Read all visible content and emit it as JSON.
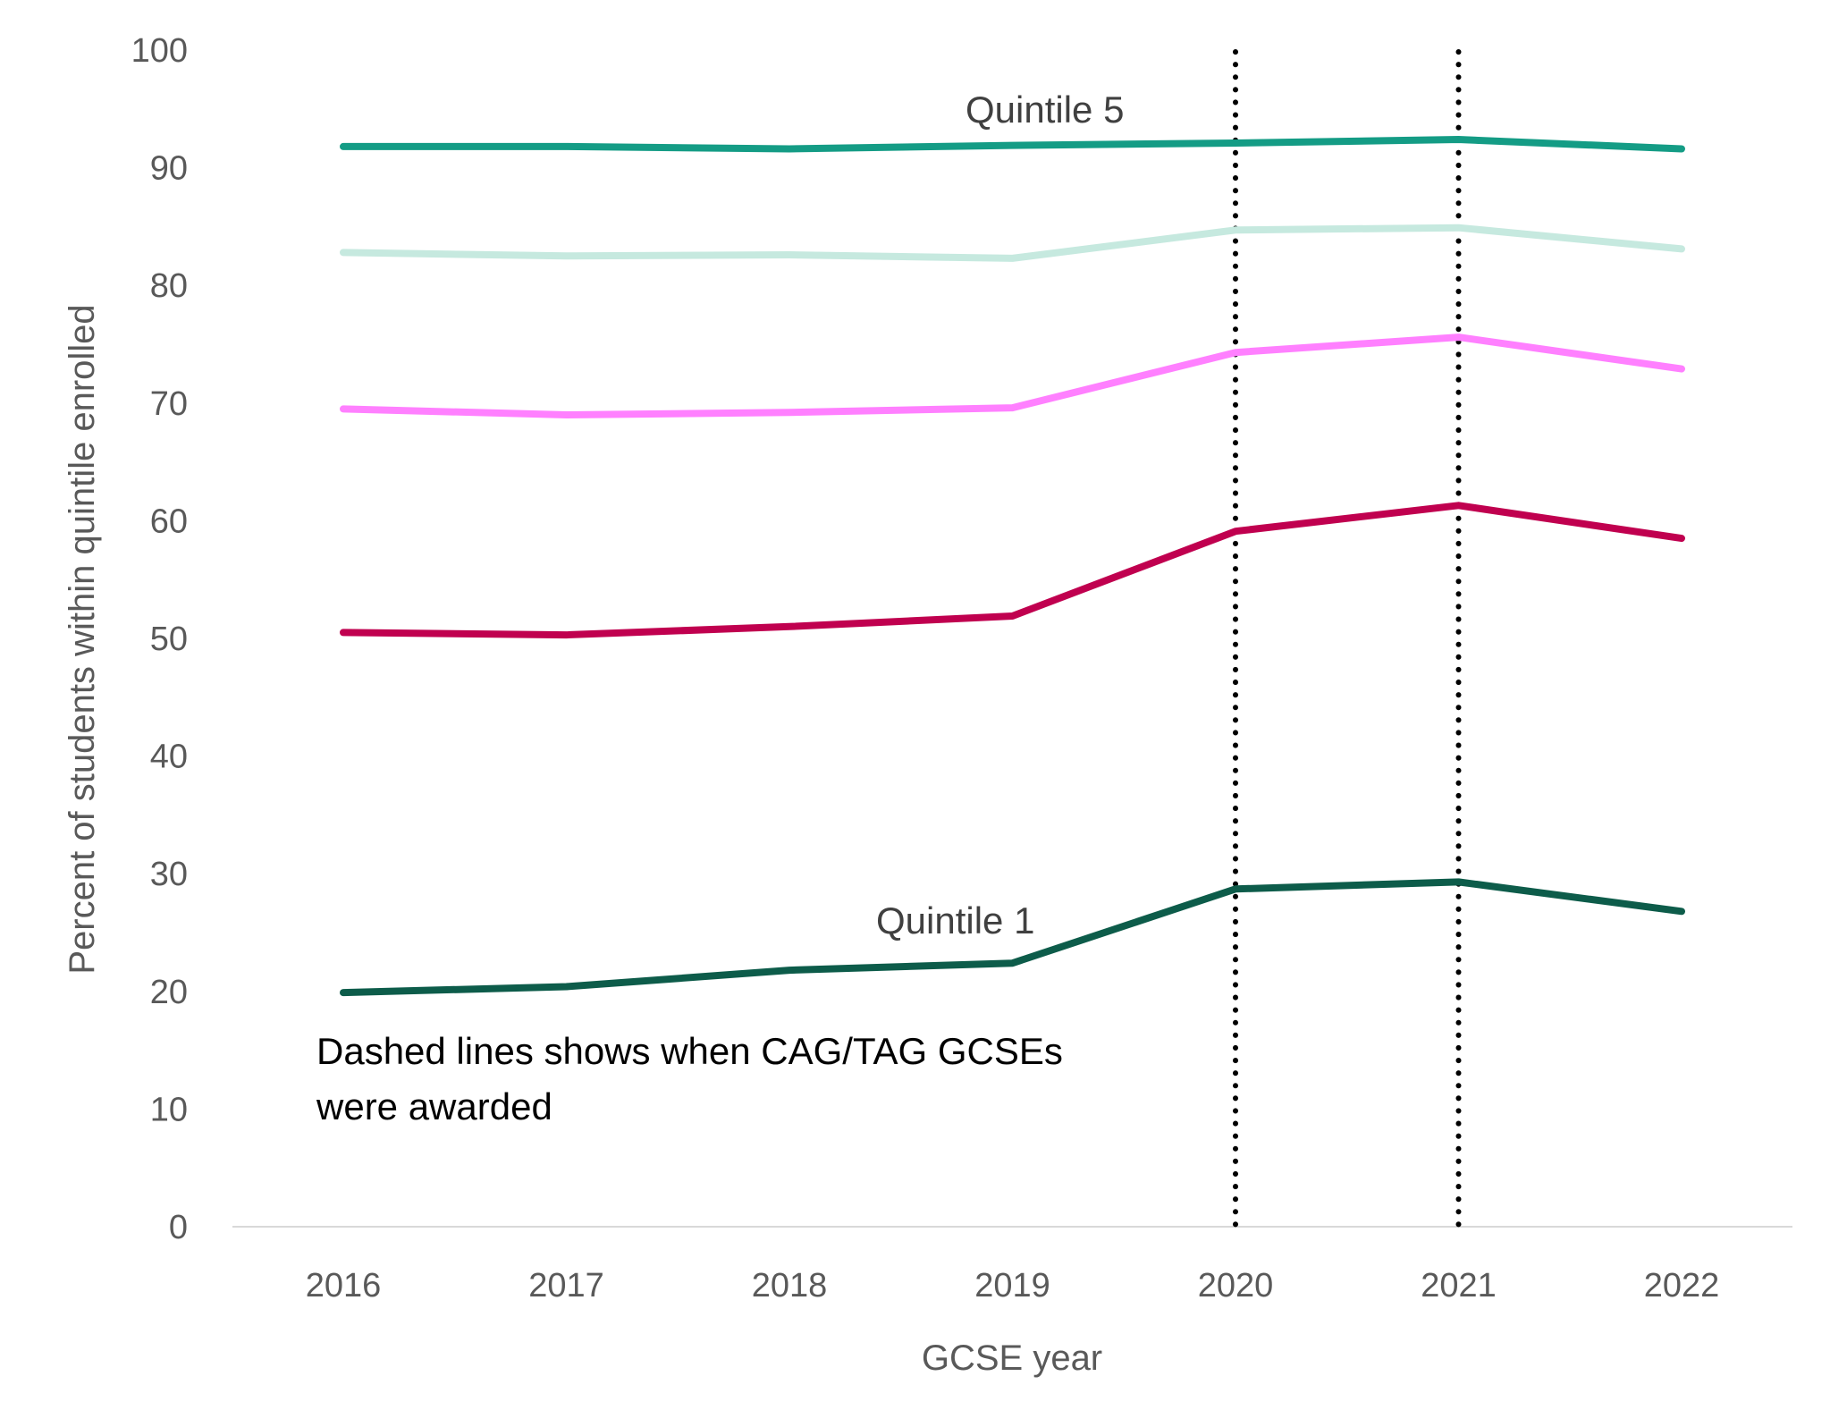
{
  "chart_data": {
    "type": "line",
    "title": "",
    "xlabel": "GCSE year",
    "ylabel": "Percent of students within quintile enrolled",
    "categories": [
      "2016",
      "2017",
      "2018",
      "2019",
      "2020",
      "2021",
      "2022"
    ],
    "ylim": [
      0,
      100
    ],
    "yticks": [
      0,
      10,
      20,
      30,
      40,
      50,
      60,
      70,
      80,
      90,
      100
    ],
    "grid": false,
    "legend": "none",
    "series": [
      {
        "name": "Quintile 5",
        "color": "#149c85",
        "values": [
          91.8,
          91.8,
          91.6,
          91.9,
          92.1,
          92.4,
          91.6
        ]
      },
      {
        "name": "",
        "color": "#c6e9df",
        "values": [
          82.8,
          82.5,
          82.6,
          82.3,
          84.7,
          84.9,
          83.1
        ]
      },
      {
        "name": "",
        "color": "#ff80ff",
        "values": [
          69.5,
          69.0,
          69.2,
          69.6,
          74.3,
          75.6,
          72.9
        ]
      },
      {
        "name": "",
        "color": "#c0004f",
        "values": [
          50.5,
          50.3,
          51.0,
          51.9,
          59.1,
          61.3,
          58.5
        ]
      },
      {
        "name": "Quintile 1",
        "color": "#0d5c4a",
        "values": [
          19.9,
          20.4,
          21.8,
          22.4,
          28.7,
          29.3,
          26.8
        ]
      }
    ],
    "reference_lines": {
      "x": [
        "2020",
        "2021"
      ],
      "style": "dotted",
      "color": "#000000"
    },
    "annotation": {
      "lines": [
        "Dashed lines shows when CAG/TAG GCSEs",
        "were awarded"
      ]
    }
  }
}
